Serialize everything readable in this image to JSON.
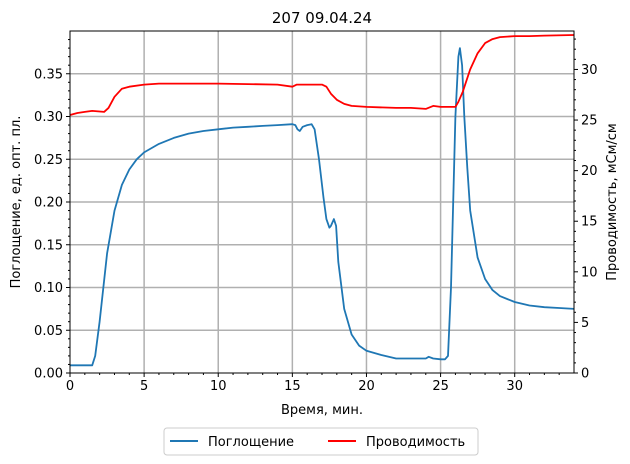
{
  "chart_data": {
    "type": "line",
    "title": "207 09.04.24",
    "xlabel": "Время, мин.",
    "ylabel_left": "Поглощение, ед. опт. пл.",
    "ylabel_right": "Проводимость, мСм/см",
    "xlim": [
      0,
      34
    ],
    "ylim_left": [
      0,
      0.4
    ],
    "ylim_right": [
      0,
      33.8
    ],
    "x_ticks": [
      "0",
      "5",
      "10",
      "15",
      "20",
      "25",
      "30"
    ],
    "y_left_ticks": [
      "0.00",
      "0.05",
      "0.10",
      "0.15",
      "0.20",
      "0.25",
      "0.30",
      "0.35"
    ],
    "y_right_ticks": [
      "0",
      "5",
      "10",
      "15",
      "20",
      "25",
      "30"
    ],
    "grid": true,
    "legend_position": "bottom-center, below plot",
    "series": [
      {
        "name": "Поглощение",
        "axis": "left",
        "color": "#1f77b4",
        "points": [
          [
            0,
            0.009
          ],
          [
            1.5,
            0.009
          ],
          [
            1.7,
            0.02
          ],
          [
            2.0,
            0.06
          ],
          [
            2.5,
            0.14
          ],
          [
            3.0,
            0.19
          ],
          [
            3.5,
            0.22
          ],
          [
            4.0,
            0.238
          ],
          [
            4.5,
            0.25
          ],
          [
            5,
            0.258
          ],
          [
            6,
            0.268
          ],
          [
            7,
            0.275
          ],
          [
            8,
            0.28
          ],
          [
            9,
            0.283
          ],
          [
            10,
            0.285
          ],
          [
            11,
            0.287
          ],
          [
            12,
            0.288
          ],
          [
            13,
            0.289
          ],
          [
            14,
            0.29
          ],
          [
            15,
            0.291
          ],
          [
            15.2,
            0.29
          ],
          [
            15.35,
            0.285
          ],
          [
            15.5,
            0.283
          ],
          [
            15.7,
            0.288
          ],
          [
            16.0,
            0.29
          ],
          [
            16.3,
            0.291
          ],
          [
            16.5,
            0.285
          ],
          [
            16.8,
            0.25
          ],
          [
            17.1,
            0.205
          ],
          [
            17.3,
            0.18
          ],
          [
            17.5,
            0.17
          ],
          [
            17.6,
            0.172
          ],
          [
            17.8,
            0.18
          ],
          [
            17.95,
            0.172
          ],
          [
            18.1,
            0.13
          ],
          [
            18.5,
            0.075
          ],
          [
            19,
            0.045
          ],
          [
            19.5,
            0.032
          ],
          [
            20,
            0.026
          ],
          [
            21,
            0.021
          ],
          [
            22,
            0.017
          ],
          [
            23,
            0.017
          ],
          [
            24,
            0.017
          ],
          [
            24.2,
            0.019
          ],
          [
            24.5,
            0.017
          ],
          [
            25,
            0.016
          ],
          [
            25.3,
            0.016
          ],
          [
            25.5,
            0.02
          ],
          [
            25.7,
            0.1
          ],
          [
            26.0,
            0.3
          ],
          [
            26.2,
            0.37
          ],
          [
            26.3,
            0.38
          ],
          [
            26.45,
            0.36
          ],
          [
            26.6,
            0.3
          ],
          [
            26.8,
            0.24
          ],
          [
            27,
            0.19
          ],
          [
            27.5,
            0.135
          ],
          [
            28,
            0.11
          ],
          [
            28.5,
            0.097
          ],
          [
            29,
            0.09
          ],
          [
            30,
            0.083
          ],
          [
            31,
            0.079
          ],
          [
            32,
            0.077
          ],
          [
            33,
            0.076
          ],
          [
            34,
            0.075
          ]
        ]
      },
      {
        "name": "Проводимость",
        "axis": "right",
        "color": "#ff0000",
        "points": [
          [
            0,
            25.5
          ],
          [
            0.5,
            25.7
          ],
          [
            1,
            25.8
          ],
          [
            1.5,
            25.9
          ],
          [
            2.3,
            25.8
          ],
          [
            2.6,
            26.2
          ],
          [
            3.0,
            27.3
          ],
          [
            3.5,
            28.1
          ],
          [
            4,
            28.3
          ],
          [
            5,
            28.5
          ],
          [
            6,
            28.6
          ],
          [
            8,
            28.6
          ],
          [
            10,
            28.6
          ],
          [
            12,
            28.55
          ],
          [
            14,
            28.5
          ],
          [
            15,
            28.3
          ],
          [
            15.3,
            28.5
          ],
          [
            16,
            28.5
          ],
          [
            17,
            28.5
          ],
          [
            17.3,
            28.3
          ],
          [
            17.6,
            27.6
          ],
          [
            18,
            27.0
          ],
          [
            18.5,
            26.6
          ],
          [
            19,
            26.4
          ],
          [
            20,
            26.3
          ],
          [
            22,
            26.2
          ],
          [
            23,
            26.2
          ],
          [
            24,
            26.1
          ],
          [
            24.5,
            26.4
          ],
          [
            25,
            26.3
          ],
          [
            25.5,
            26.3
          ],
          [
            26,
            26.3
          ],
          [
            26.2,
            26.8
          ],
          [
            26.5,
            27.8
          ],
          [
            27,
            30.0
          ],
          [
            27.5,
            31.6
          ],
          [
            28,
            32.6
          ],
          [
            28.5,
            33.0
          ],
          [
            29,
            33.2
          ],
          [
            30,
            33.3
          ],
          [
            31,
            33.3
          ],
          [
            32,
            33.35
          ],
          [
            34,
            33.4
          ]
        ]
      }
    ]
  }
}
